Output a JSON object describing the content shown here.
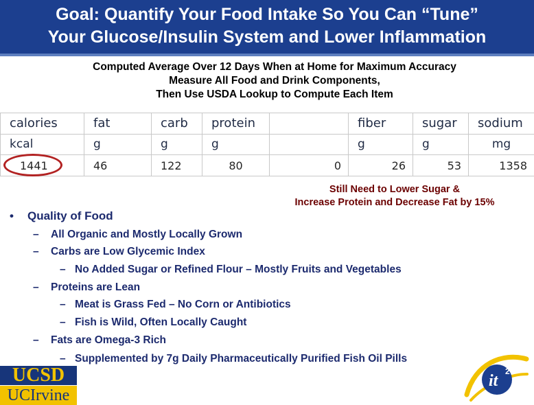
{
  "header": {
    "title_line1": "Goal: Quantify Your Food Intake So You Can “Tune”",
    "title_line2": "Your Glucose/Insulin System and Lower Inflammation"
  },
  "subtitle": {
    "line1": "Computed Average Over 12 Days When at Home for Maximum Accuracy",
    "line2": "Measure All Food and Drink Components,",
    "line3": "Then Use USDA Lookup to Compute Each Item"
  },
  "nutrition_table": {
    "headers": [
      "calories",
      "fat",
      "carb",
      "protein",
      "",
      "fiber",
      "sugar",
      "sodium"
    ],
    "units": [
      "kcal",
      "g",
      "g",
      "g",
      "",
      "g",
      "g",
      "mg"
    ],
    "values": [
      "1441",
      "46",
      "122",
      "80",
      "0",
      "26",
      "53",
      "1358"
    ]
  },
  "note": {
    "line1": "Still Need to Lower Sugar &",
    "line2": "Increase Protein and Decrease Fat by 15%"
  },
  "bullets": {
    "main_marker": "•",
    "main": "Quality of Food",
    "dash": "–",
    "items": [
      "All Organic and Mostly Locally Grown",
      "Carbs are Low Glycemic Index",
      "No Added Sugar or Refined Flour – Mostly Fruits and Vegetables",
      "Proteins are Lean",
      "Meat is Grass Fed – No Corn or Antibiotics",
      "Fish is Wild, Often Locally Caught",
      "Fats are Omega-3 Rich",
      "Supplemented by 7g Daily Pharmaceutically Purified Fish Oil Pills"
    ]
  },
  "logos": {
    "ucsd": "UCSD",
    "uci": "UCIrvine",
    "it2": "it"
  },
  "colors": {
    "title_bg": "#1c3f8f",
    "body_text": "#1c2a6e",
    "note_text": "#6b0000",
    "circle": "#b22222"
  }
}
